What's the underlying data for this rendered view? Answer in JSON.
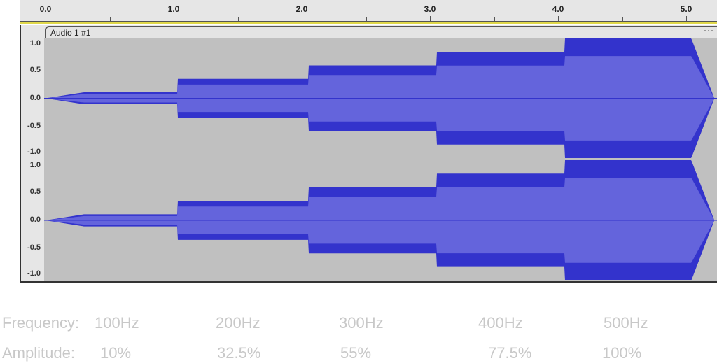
{
  "ruler": {
    "ticks": [
      "0.0",
      "1.0",
      "2.0",
      "3.0",
      "4.0",
      "5.0"
    ]
  },
  "track": {
    "name": "Audio 1 #1",
    "menu_label": "···"
  },
  "scale": {
    "labels": [
      "1.0",
      "0.5",
      "0.0",
      "-0.5",
      "-1.0"
    ]
  },
  "colors": {
    "peak": "#3333cc",
    "rms": "#6464dc",
    "background": "#c0c0c0"
  },
  "waveform": {
    "channels": 2,
    "segments": [
      {
        "start": 0.0,
        "end": 1.03,
        "amplitude": 0.1,
        "fade_in": 0.3
      },
      {
        "start": 1.03,
        "end": 2.05,
        "amplitude": 0.325
      },
      {
        "start": 2.05,
        "end": 3.05,
        "amplitude": 0.55
      },
      {
        "start": 3.05,
        "end": 4.05,
        "amplitude": 0.775
      },
      {
        "start": 4.05,
        "end": 5.22,
        "amplitude": 1.0,
        "fade_out": 0.18
      }
    ],
    "rms_ratio": 0.707
  },
  "caption": {
    "frequency_label": "Frequency:",
    "frequencies": [
      "100Hz",
      "200Hz",
      "300Hz",
      "400Hz",
      "500Hz"
    ],
    "amplitude_label": "Amplitude:",
    "amplitudes": [
      "10%",
      "32.5%",
      "55%",
      "77.5%",
      "100%"
    ]
  }
}
